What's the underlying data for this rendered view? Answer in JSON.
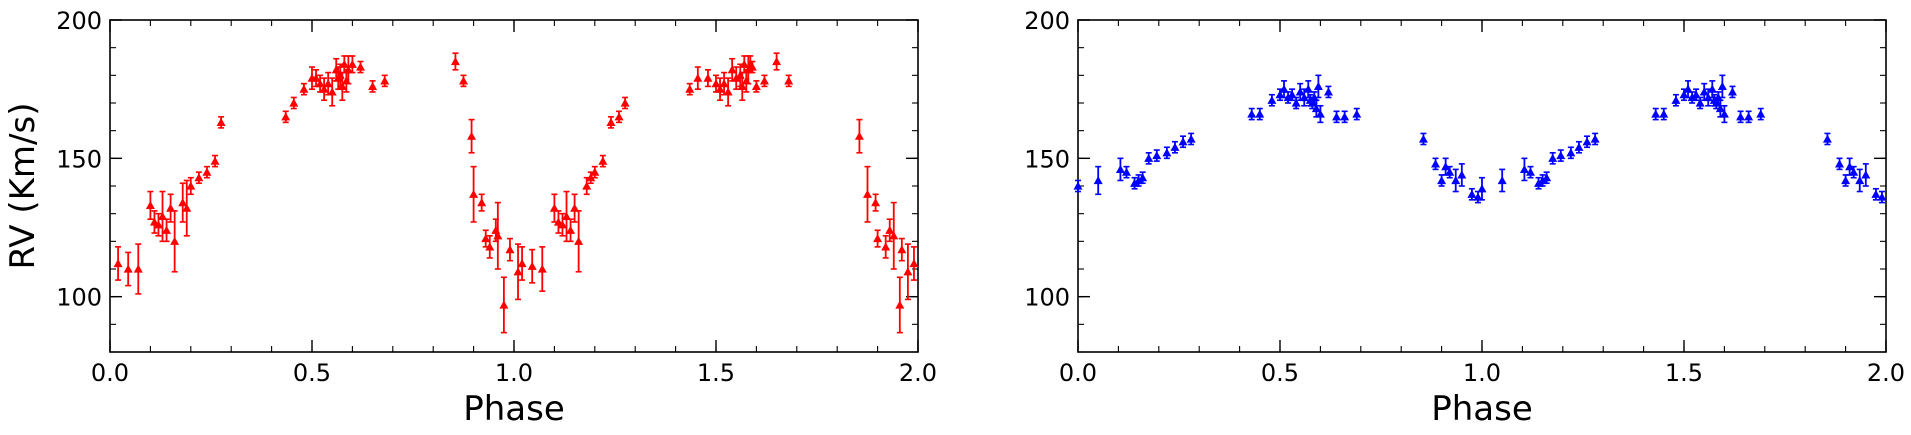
{
  "chart_data": [
    {
      "type": "scatter",
      "ylabel": "RV (Km/s)",
      "xlabel": "Phase",
      "xlim": [
        0.0,
        2.0
      ],
      "ylim": [
        80,
        200
      ],
      "xticks": [
        "0.0",
        "0.5",
        "1.0",
        "1.5",
        "2.0"
      ],
      "yticks": [
        "100",
        "150",
        "200"
      ],
      "marker": "triangle",
      "color": "#ff0000",
      "series": [
        {
          "x": [
            0.02,
            0.045,
            0.07,
            0.1,
            0.11,
            0.12,
            0.13,
            0.14,
            0.15,
            0.16,
            0.18,
            0.19,
            0.2,
            0.22,
            0.24,
            0.26,
            0.275,
            0.435,
            0.455,
            0.48,
            0.5,
            0.51,
            0.52,
            0.53,
            0.54,
            0.55,
            0.56,
            0.565,
            0.57,
            0.575,
            0.58,
            0.585,
            0.59,
            0.6,
            0.62,
            0.65,
            0.68,
            0.855,
            0.875,
            0.895,
            0.9,
            0.92,
            0.93,
            0.94,
            0.955,
            0.96,
            0.975,
            0.99,
            1.01,
            1.02,
            1.045,
            1.07,
            1.1,
            1.11,
            1.12,
            1.13,
            1.14,
            1.15,
            1.16,
            1.18,
            1.19,
            1.2,
            1.22,
            1.24,
            1.26,
            1.275,
            1.435,
            1.455,
            1.48,
            1.5,
            1.51,
            1.52,
            1.53,
            1.54,
            1.55,
            1.56,
            1.565,
            1.57,
            1.575,
            1.58,
            1.585,
            1.59,
            1.6,
            1.62,
            1.65,
            1.68,
            1.855,
            1.875,
            1.895,
            1.9,
            1.92,
            1.93,
            1.94,
            1.955,
            1.96,
            1.975,
            1.99
          ],
          "y": [
            112,
            110,
            110,
            133,
            127,
            126,
            129,
            124,
            132,
            120,
            134,
            132,
            140,
            143,
            145,
            149,
            163,
            165,
            170,
            175,
            179,
            179,
            177,
            175,
            177,
            174,
            182,
            179,
            180,
            176,
            184,
            178,
            182,
            184,
            183,
            176,
            178,
            185,
            178,
            158,
            137,
            134,
            121,
            118,
            124,
            122,
            97,
            117,
            109,
            112,
            111,
            110,
            132,
            127,
            126,
            129,
            124,
            132,
            120,
            140,
            143,
            145,
            149,
            163,
            165,
            170,
            175,
            179,
            179,
            177,
            175,
            177,
            174,
            182,
            179,
            180,
            176,
            184,
            178,
            182,
            184,
            183,
            176,
            178,
            185,
            178,
            158,
            137,
            134,
            121,
            118,
            124,
            122,
            97,
            117,
            109,
            112
          ],
          "err": [
            6,
            6,
            9,
            5,
            4,
            4,
            9,
            4,
            5,
            11,
            7,
            10,
            3,
            2,
            2,
            2,
            2,
            2,
            2,
            2,
            4,
            3,
            3,
            4,
            4,
            5,
            4,
            4,
            4,
            5,
            3,
            4,
            5,
            3,
            2,
            2,
            2,
            3,
            2,
            6,
            10,
            3,
            3,
            4,
            4,
            12,
            10,
            4,
            10,
            6,
            6,
            8,
            5,
            4,
            4,
            9,
            4,
            5,
            11,
            3,
            2,
            2,
            2,
            2,
            2,
            2,
            2,
            4,
            3,
            3,
            4,
            4,
            5,
            4,
            4,
            4,
            5,
            3,
            4,
            5,
            3,
            2,
            2,
            2,
            3,
            2,
            6,
            10,
            3,
            3,
            4,
            4,
            12,
            10,
            4,
            10,
            6
          ]
        }
      ]
    },
    {
      "type": "scatter",
      "xlabel": "Phase",
      "xlim": [
        0.0,
        2.0
      ],
      "ylim": [
        80,
        200
      ],
      "xticks": [
        "0.0",
        "0.5",
        "1.0",
        "1.5",
        "2.0"
      ],
      "yticks": [
        "100",
        "150",
        "200"
      ],
      "marker": "triangle",
      "color": "#0000ff",
      "series": [
        {
          "x": [
            0.0,
            0.05,
            0.105,
            0.12,
            0.14,
            0.15,
            0.16,
            0.175,
            0.195,
            0.22,
            0.24,
            0.26,
            0.28,
            0.43,
            0.45,
            0.48,
            0.5,
            0.51,
            0.52,
            0.53,
            0.54,
            0.55,
            0.56,
            0.57,
            0.575,
            0.58,
            0.585,
            0.59,
            0.595,
            0.6,
            0.62,
            0.64,
            0.66,
            0.69,
            0.855,
            0.885,
            0.9,
            0.91,
            0.92,
            0.935,
            0.95,
            0.975,
            0.99,
            1.0,
            1.05,
            1.105,
            1.12,
            1.14,
            1.15,
            1.16,
            1.175,
            1.195,
            1.22,
            1.24,
            1.26,
            1.28,
            1.43,
            1.45,
            1.48,
            1.5,
            1.51,
            1.52,
            1.53,
            1.54,
            1.55,
            1.56,
            1.57,
            1.575,
            1.58,
            1.585,
            1.59,
            1.595,
            1.6,
            1.62,
            1.64,
            1.66,
            1.69,
            1.855,
            1.885,
            1.9,
            1.91,
            1.92,
            1.935,
            1.95,
            1.975,
            1.99
          ],
          "y": [
            140,
            142,
            146,
            145,
            141,
            142,
            143,
            150,
            151,
            152,
            154,
            156,
            157,
            166,
            166,
            171,
            173,
            175,
            172,
            173,
            170,
            174,
            172,
            175,
            171,
            170,
            172,
            168,
            176,
            166,
            174,
            165,
            165,
            166,
            157,
            148,
            142,
            147,
            145,
            142,
            144,
            137,
            136,
            139,
            142,
            146,
            145,
            141,
            142,
            143,
            150,
            151,
            152,
            154,
            156,
            157,
            166,
            166,
            171,
            173,
            175,
            172,
            173,
            170,
            174,
            172,
            175,
            171,
            170,
            172,
            168,
            176,
            166,
            174,
            165,
            165,
            166,
            157,
            148,
            142,
            147,
            145,
            142,
            144,
            137,
            136
          ],
          "err": [
            2,
            5,
            4,
            2,
            2,
            2,
            2,
            2,
            2,
            2,
            2,
            2,
            2,
            2,
            2,
            2,
            2,
            3,
            2,
            2,
            2,
            3,
            3,
            3,
            2,
            2,
            2,
            3,
            4,
            3,
            2,
            2,
            2,
            2,
            2,
            2,
            2,
            3,
            2,
            4,
            4,
            2,
            2,
            4,
            4,
            4,
            2,
            2,
            2,
            2,
            2,
            2,
            2,
            2,
            2,
            2,
            2,
            2,
            2,
            2,
            3,
            2,
            2,
            2,
            3,
            3,
            3,
            2,
            2,
            2,
            3,
            4,
            3,
            2,
            2,
            2,
            2,
            2,
            2,
            2,
            3,
            2,
            4,
            4,
            2,
            2
          ]
        }
      ]
    }
  ]
}
